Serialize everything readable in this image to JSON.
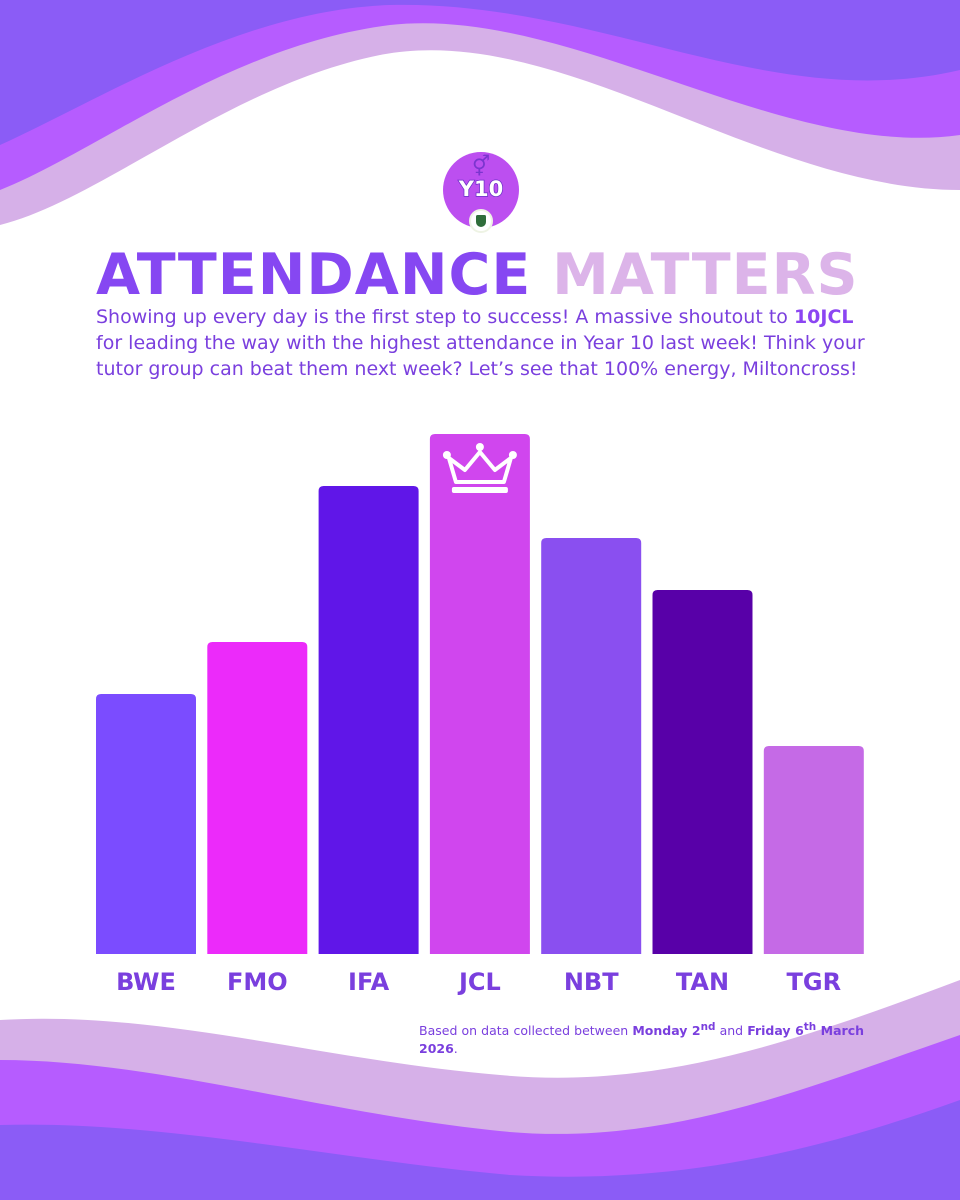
{
  "header": {
    "badge_label": "Y10",
    "title_part1": "ATTENDANCE",
    "title_part2": "MATTERS"
  },
  "intro": {
    "text_1": "Showing up every day is the first step to success! A massive shoutout to ",
    "highlight": "10JCL",
    "text_2": " for leading the way with the highest attendance in Year 10 last week! Think your tutor group can beat them next week? Let’s see that 100% energy, Miltoncross!"
  },
  "footnote": {
    "prefix": "Based on data collected between ",
    "start_day": "Monday 2",
    "start_suffix": "nd",
    "connector": " and ",
    "end_day": "Friday 6",
    "end_suffix": "th",
    "end_rest": " March 2026",
    "end_punct": "."
  },
  "chart_data": {
    "type": "bar",
    "title": "",
    "xlabel": "",
    "ylabel": "",
    "categories": [
      "BWE",
      "FMO",
      "IFA",
      "JCL",
      "NBT",
      "TAN",
      "TGR"
    ],
    "values": [
      50,
      60,
      90,
      100,
      80,
      70,
      40
    ],
    "ylim": [
      0,
      100
    ],
    "grid": false,
    "colors": [
      "#7b4cff",
      "#ec2afa",
      "#6016e8",
      "#d046ee",
      "#8a4ff0",
      "#5800a8",
      "#c56ae6"
    ],
    "winner": "JCL",
    "winner_icon": "crown-icon"
  },
  "colors": {
    "wave_dark": "#8b5cf6",
    "wave_mid": "#b65cff",
    "wave_light": "#d6b0e8",
    "text_purple": "#7a3fde",
    "title_purple": "#8647f2",
    "title_lilac": "#dcb4e9"
  }
}
